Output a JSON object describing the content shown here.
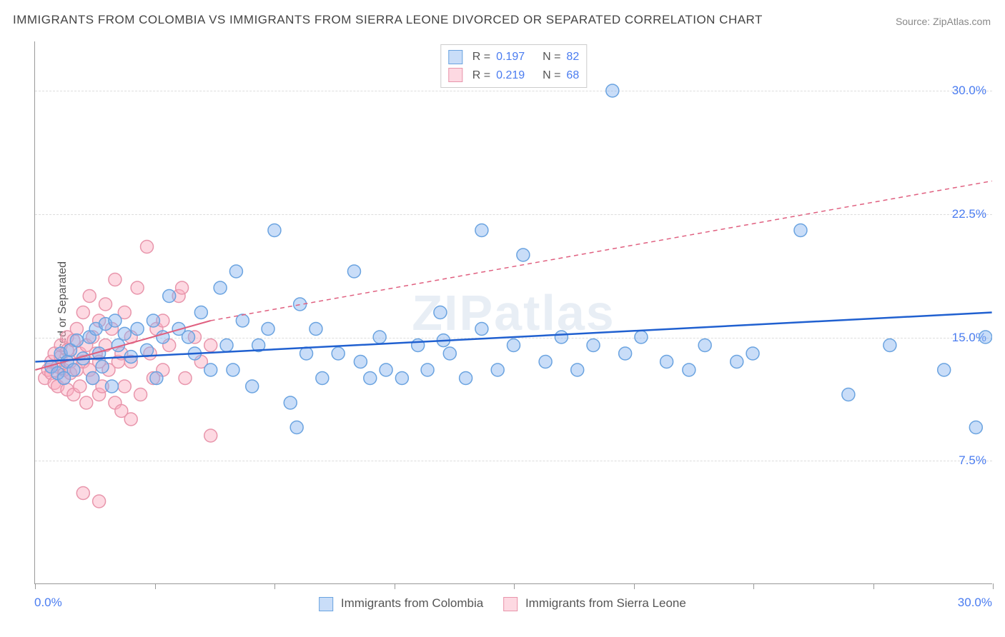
{
  "title": "IMMIGRANTS FROM COLOMBIA VS IMMIGRANTS FROM SIERRA LEONE DIVORCED OR SEPARATED CORRELATION CHART",
  "source": "Source: ZipAtlas.com",
  "ylabel": "Divorced or Separated",
  "watermark": "ZIPatlas",
  "chart": {
    "type": "scatter",
    "xlim": [
      0,
      30
    ],
    "ylim": [
      0,
      33
    ],
    "x_axis_min_label": "0.0%",
    "x_axis_max_label": "30.0%",
    "y_ticks": [
      7.5,
      15.0,
      22.5,
      30.0
    ],
    "y_tick_labels": [
      "7.5%",
      "15.0%",
      "22.5%",
      "30.0%"
    ],
    "x_tick_positions": [
      0,
      3.75,
      7.5,
      11.25,
      15,
      18.75,
      22.5,
      26.25,
      30
    ],
    "background_color": "#ffffff",
    "grid_color": "#dddddd",
    "axis_color": "#999999",
    "tick_label_color": "#4a7cf0",
    "title_fontsize": 17,
    "label_fontsize": 16,
    "tick_fontsize": 17,
    "series": [
      {
        "key": "colombia",
        "label": "Immigrants from Colombia",
        "R": 0.197,
        "N": 82,
        "marker_color_fill": "rgba(135,180,240,0.45)",
        "marker_color_stroke": "#6aa3e0",
        "marker_radius": 9,
        "trend_color": "#2060d0",
        "trend_width": 2.5,
        "trend_dash": "none",
        "trend": [
          [
            0,
            13.5
          ],
          [
            30,
            16.5
          ]
        ],
        "points": [
          [
            0.5,
            13.2
          ],
          [
            0.7,
            12.8
          ],
          [
            0.8,
            14.0
          ],
          [
            0.9,
            12.5
          ],
          [
            1.0,
            13.5
          ],
          [
            1.1,
            14.2
          ],
          [
            1.2,
            13.0
          ],
          [
            1.3,
            14.8
          ],
          [
            1.5,
            13.7
          ],
          [
            1.7,
            15.0
          ],
          [
            1.8,
            12.5
          ],
          [
            1.9,
            15.5
          ],
          [
            2.0,
            14.0
          ],
          [
            2.1,
            13.2
          ],
          [
            2.2,
            15.8
          ],
          [
            2.4,
            12.0
          ],
          [
            2.5,
            16.0
          ],
          [
            2.6,
            14.5
          ],
          [
            2.8,
            15.2
          ],
          [
            3.0,
            13.8
          ],
          [
            3.2,
            15.5
          ],
          [
            3.5,
            14.2
          ],
          [
            3.7,
            16.0
          ],
          [
            3.8,
            12.5
          ],
          [
            4.0,
            15.0
          ],
          [
            4.2,
            17.5
          ],
          [
            4.5,
            15.5
          ],
          [
            4.8,
            15.0
          ],
          [
            5.0,
            14.0
          ],
          [
            5.2,
            16.5
          ],
          [
            5.5,
            13.0
          ],
          [
            5.8,
            18.0
          ],
          [
            6.0,
            14.5
          ],
          [
            6.2,
            13.0
          ],
          [
            6.3,
            19.0
          ],
          [
            6.5,
            16.0
          ],
          [
            6.8,
            12.0
          ],
          [
            7.0,
            14.5
          ],
          [
            7.3,
            15.5
          ],
          [
            7.5,
            21.5
          ],
          [
            8.0,
            11.0
          ],
          [
            8.2,
            9.5
          ],
          [
            8.3,
            17.0
          ],
          [
            8.5,
            14.0
          ],
          [
            8.8,
            15.5
          ],
          [
            9.0,
            12.5
          ],
          [
            9.5,
            14.0
          ],
          [
            10.0,
            19.0
          ],
          [
            10.2,
            13.5
          ],
          [
            10.5,
            12.5
          ],
          [
            10.8,
            15.0
          ],
          [
            11.0,
            13.0
          ],
          [
            11.5,
            12.5
          ],
          [
            12.0,
            14.5
          ],
          [
            12.3,
            13.0
          ],
          [
            12.7,
            16.5
          ],
          [
            13.0,
            14.0
          ],
          [
            13.5,
            12.5
          ],
          [
            14.0,
            15.5
          ],
          [
            14.0,
            21.5
          ],
          [
            14.5,
            13.0
          ],
          [
            15.0,
            14.5
          ],
          [
            15.3,
            20.0
          ],
          [
            16.0,
            13.5
          ],
          [
            16.5,
            15.0
          ],
          [
            17.0,
            13.0
          ],
          [
            17.5,
            14.5
          ],
          [
            18.1,
            30.0
          ],
          [
            18.5,
            14.0
          ],
          [
            19.0,
            15.0
          ],
          [
            19.8,
            13.5
          ],
          [
            20.5,
            13.0
          ],
          [
            21.0,
            14.5
          ],
          [
            22.0,
            13.5
          ],
          [
            22.5,
            14.0
          ],
          [
            24.0,
            21.5
          ],
          [
            25.5,
            11.5
          ],
          [
            26.8,
            14.5
          ],
          [
            28.5,
            13.0
          ],
          [
            29.5,
            9.5
          ],
          [
            29.8,
            15.0
          ],
          [
            12.8,
            14.8
          ]
        ]
      },
      {
        "key": "sierra_leone",
        "label": "Immigrants from Sierra Leone",
        "R": 0.219,
        "N": 68,
        "marker_color_fill": "rgba(250,170,190,0.45)",
        "marker_color_stroke": "#e895ab",
        "marker_radius": 9,
        "trend_color": "#e06080",
        "trend_width": 2,
        "trend_dash": "none",
        "trend": [
          [
            0,
            13.0
          ],
          [
            5.5,
            16.0
          ]
        ],
        "trend_dashed": [
          [
            5.5,
            16.0
          ],
          [
            30,
            24.5
          ]
        ],
        "points": [
          [
            0.3,
            12.5
          ],
          [
            0.4,
            13.0
          ],
          [
            0.5,
            12.8
          ],
          [
            0.5,
            13.5
          ],
          [
            0.6,
            12.2
          ],
          [
            0.6,
            14.0
          ],
          [
            0.7,
            13.2
          ],
          [
            0.7,
            12.0
          ],
          [
            0.8,
            13.8
          ],
          [
            0.8,
            14.5
          ],
          [
            0.9,
            12.5
          ],
          [
            0.9,
            13.0
          ],
          [
            1.0,
            14.2
          ],
          [
            1.0,
            11.8
          ],
          [
            1.0,
            15.0
          ],
          [
            1.1,
            13.5
          ],
          [
            1.1,
            12.8
          ],
          [
            1.2,
            14.8
          ],
          [
            1.2,
            11.5
          ],
          [
            1.3,
            13.0
          ],
          [
            1.3,
            15.5
          ],
          [
            1.4,
            12.0
          ],
          [
            1.4,
            14.0
          ],
          [
            1.5,
            13.5
          ],
          [
            1.5,
            16.5
          ],
          [
            1.6,
            11.0
          ],
          [
            1.6,
            14.5
          ],
          [
            1.7,
            13.0
          ],
          [
            1.7,
            17.5
          ],
          [
            1.8,
            12.5
          ],
          [
            1.8,
            15.0
          ],
          [
            1.9,
            14.0
          ],
          [
            2.0,
            13.5
          ],
          [
            2.0,
            11.5
          ],
          [
            2.0,
            16.0
          ],
          [
            2.1,
            12.0
          ],
          [
            2.2,
            14.5
          ],
          [
            2.2,
            17.0
          ],
          [
            2.3,
            13.0
          ],
          [
            2.4,
            15.5
          ],
          [
            2.5,
            11.0
          ],
          [
            2.5,
            18.5
          ],
          [
            2.6,
            13.5
          ],
          [
            2.7,
            14.0
          ],
          [
            2.8,
            12.0
          ],
          [
            2.8,
            16.5
          ],
          [
            3.0,
            13.5
          ],
          [
            3.0,
            15.0
          ],
          [
            3.2,
            18.0
          ],
          [
            3.3,
            11.5
          ],
          [
            3.5,
            20.5
          ],
          [
            3.6,
            14.0
          ],
          [
            3.7,
            12.5
          ],
          [
            3.8,
            15.5
          ],
          [
            4.0,
            13.0
          ],
          [
            4.0,
            16.0
          ],
          [
            4.2,
            14.5
          ],
          [
            4.5,
            17.5
          ],
          [
            4.7,
            12.5
          ],
          [
            5.0,
            15.0
          ],
          [
            5.2,
            13.5
          ],
          [
            5.5,
            9.0
          ],
          [
            5.5,
            14.5
          ],
          [
            1.5,
            5.5
          ],
          [
            2.0,
            5.0
          ],
          [
            4.6,
            18.0
          ],
          [
            3.0,
            10.0
          ],
          [
            2.7,
            10.5
          ]
        ]
      }
    ]
  },
  "legend_R_label": "R =",
  "legend_N_label": "N ="
}
